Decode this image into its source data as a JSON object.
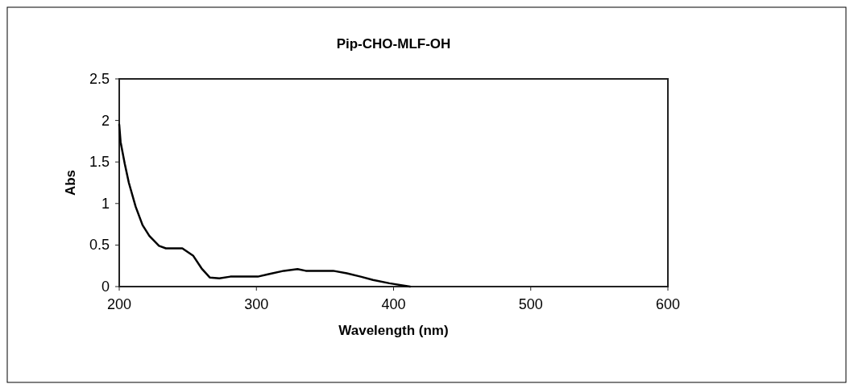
{
  "chart_data": {
    "type": "line",
    "title": "Pip-CHO-MLF-OH",
    "xlabel": "Wavelength (nm)",
    "ylabel": "Abs",
    "xlim": [
      200,
      600
    ],
    "xticks": [
      200,
      300,
      400,
      500,
      600
    ],
    "ylim": [
      0,
      2.5
    ],
    "yticks": [
      0,
      0.5,
      1,
      1.5,
      2,
      2.5
    ],
    "grid": false,
    "series": [
      {
        "color": "#000000",
        "x": [
          200,
          201,
          204,
          207,
          212,
          217,
          222,
          229,
          234,
          246,
          254,
          260,
          266,
          273,
          281,
          301,
          309,
          320,
          330,
          336,
          356,
          366,
          376,
          385,
          397,
          412
        ],
        "values": [
          1.95,
          1.74,
          1.48,
          1.25,
          0.96,
          0.74,
          0.61,
          0.49,
          0.46,
          0.46,
          0.37,
          0.22,
          0.11,
          0.1,
          0.12,
          0.12,
          0.15,
          0.19,
          0.21,
          0.19,
          0.19,
          0.16,
          0.12,
          0.08,
          0.04,
          0
        ]
      }
    ]
  }
}
